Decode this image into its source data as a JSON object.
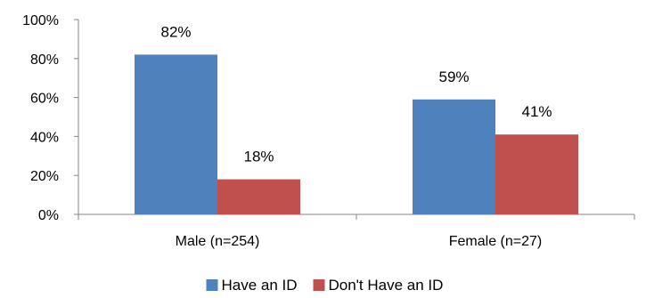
{
  "chart_data": {
    "type": "bar",
    "categories": [
      "Male (n=254)",
      "Female (n=27)"
    ],
    "series": [
      {
        "name": "Have an ID",
        "values": [
          82,
          59
        ],
        "color": "#4F81BD"
      },
      {
        "name": "Don't Have an ID",
        "values": [
          18,
          41
        ],
        "color": "#C0504D"
      }
    ],
    "data_labels": [
      [
        "82%",
        "59%"
      ],
      [
        "18%",
        "41%"
      ]
    ],
    "y_ticks": [
      "0%",
      "20%",
      "40%",
      "60%",
      "80%",
      "100%"
    ],
    "ylim": [
      0,
      100
    ],
    "grid": false,
    "legend_position": "bottom"
  }
}
